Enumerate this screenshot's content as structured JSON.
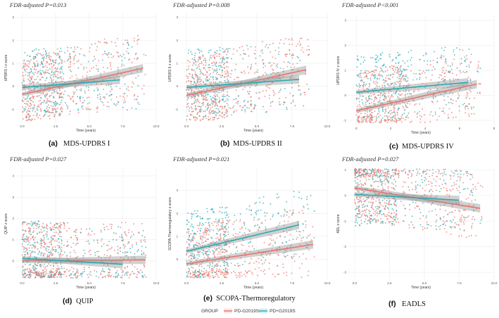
{
  "figure": {
    "legend": {
      "title": "GROUP",
      "entries": [
        {
          "label": "PD-G2019S",
          "color": "#e8736b"
        },
        {
          "label": "PD+G2019S",
          "color": "#2aa9b3"
        }
      ]
    }
  },
  "chart_data": [
    {
      "type": "scatter",
      "id": "a",
      "title": "FDR-adjusted P=0.013",
      "caption_letter": "(a)",
      "caption": "MDS-UPDRS  I",
      "xlabel": "Time (years)",
      "ylabel": "UPDRS I z score",
      "xlim": [
        -0.5,
        10
      ],
      "ylim": [
        -1.6,
        3.2
      ],
      "xticks": [
        "0.0",
        "2.5",
        "5.0",
        "7.5",
        "10.0"
      ],
      "xtick_values": [
        0,
        2.5,
        5,
        7.5,
        10
      ],
      "yticks": [
        "-1",
        "0",
        "1",
        "2",
        "3"
      ],
      "ytick_values": [
        -1,
        0,
        1,
        2,
        3
      ],
      "series": [
        {
          "name": "PD-G2019S",
          "fit": {
            "x": [
              0,
              9
            ],
            "y": [
              -0.35,
              0.78
            ]
          }
        },
        {
          "name": "PD+G2019S",
          "fit": {
            "x": [
              0,
              7.3
            ],
            "y": [
              -0.05,
              0.28
            ]
          }
        }
      ]
    },
    {
      "type": "scatter",
      "id": "b",
      "title": "FDR-adjusted P=0.008",
      "caption_letter": "(b)",
      "caption": "MDS-UPDRS  II",
      "xlabel": "Time (years)",
      "ylabel": "UPDRS II z score",
      "xlim": [
        -0.5,
        10
      ],
      "ylim": [
        -1.6,
        3.2
      ],
      "xticks": [
        "0.0",
        "2.5",
        "5.0",
        "7.5",
        "10.0"
      ],
      "xtick_values": [
        0,
        2.5,
        5,
        7.5,
        10
      ],
      "yticks": [
        "-1",
        "0",
        "1",
        "2",
        "3"
      ],
      "ytick_values": [
        -1,
        0,
        1,
        2,
        3
      ],
      "series": [
        {
          "name": "PD-G2019S",
          "fit": {
            "x": [
              0,
              8.5
            ],
            "y": [
              -0.4,
              0.72
            ]
          }
        },
        {
          "name": "PD+G2019S",
          "fit": {
            "x": [
              0,
              8.0
            ],
            "y": [
              -0.05,
              0.3
            ]
          }
        }
      ]
    },
    {
      "type": "scatter",
      "id": "c",
      "title": "FDR-adjusted P<0.001",
      "caption_letter": "(c)",
      "caption": "MDS-UPDRS  IV",
      "xlabel": "Time (years)",
      "ylabel": "UPDRS IV z score",
      "xlim": [
        -0.5,
        8
      ],
      "ylim": [
        -1.2,
        3.2
      ],
      "xticks": [
        "0",
        "2",
        "4",
        "6",
        "8"
      ],
      "xtick_values": [
        0,
        2,
        4,
        6,
        8
      ],
      "yticks": [
        "-1",
        "0",
        "1",
        "2",
        "3"
      ],
      "ytick_values": [
        -1,
        0,
        1,
        2,
        3
      ],
      "series": [
        {
          "name": "PD-G2019S",
          "fit": {
            "x": [
              0,
              7.0
            ],
            "y": [
              -0.62,
              0.45
            ]
          }
        },
        {
          "name": "PD+G2019S",
          "fit": {
            "x": [
              0,
              6.5
            ],
            "y": [
              0.12,
              0.52
            ]
          }
        }
      ]
    },
    {
      "type": "scatter",
      "id": "d",
      "title": "FDR-adjusted P=0.027",
      "caption_letter": "(d)",
      "caption": "QUIP",
      "xlabel": "Time (years)",
      "ylabel": "QUIP z score",
      "xlim": [
        -0.5,
        10
      ],
      "ylim": [
        -0.9,
        4.4
      ],
      "xticks": [
        "0.0",
        "2.5",
        "5.0",
        "7.5",
        "10.0"
      ],
      "xtick_values": [
        0,
        2.5,
        5,
        7.5,
        10
      ],
      "yticks": [
        "0",
        "1",
        "2",
        "3",
        "4"
      ],
      "ytick_values": [
        0,
        1,
        2,
        3,
        4
      ],
      "series": [
        {
          "name": "PD-G2019S",
          "fit": {
            "x": [
              0,
              9.2
            ],
            "y": [
              0.0,
              0.05
            ]
          }
        },
        {
          "name": "PD+G2019S",
          "fit": {
            "x": [
              0,
              7.5
            ],
            "y": [
              0.12,
              -0.16
            ]
          }
        }
      ]
    },
    {
      "type": "scatter",
      "id": "e",
      "title": "FDR-adjusted P=0.021",
      "caption_letter": "(e)",
      "caption": "SCOPA-Thermoregulatory",
      "xlabel": "Time (years)",
      "ylabel": "SCOPA-Thermoregulatory z score",
      "xlim": [
        -0.5,
        10
      ],
      "ylim": [
        -0.9,
        4.0
      ],
      "xticks": [
        "0.0",
        "2.5",
        "5.0",
        "7.5",
        "10.0"
      ],
      "xtick_values": [
        0,
        2.5,
        5,
        7.5,
        10
      ],
      "yticks": [
        "0",
        "1",
        "2",
        "3"
      ],
      "ytick_values": [
        0,
        1,
        2,
        3
      ],
      "series": [
        {
          "name": "PD-G2019S",
          "fit": {
            "x": [
              0,
              9.0
            ],
            "y": [
              -0.2,
              0.65
            ]
          }
        },
        {
          "name": "PD+G2019S",
          "fit": {
            "x": [
              0,
              8.0
            ],
            "y": [
              0.35,
              1.5
            ]
          }
        }
      ]
    },
    {
      "type": "scatter",
      "id": "f",
      "title": "FDR-adjusted P=0.027",
      "caption_letter": "(f)",
      "caption": "EADLS",
      "xlabel": "Time (years)",
      "ylabel": "ADL z score",
      "xlim": [
        -0.5,
        10
      ],
      "ylim": [
        -3.3,
        1.1
      ],
      "xticks": [
        "0.0",
        "2.5",
        "5.0",
        "7.5",
        "10.0"
      ],
      "xtick_values": [
        0,
        2.5,
        5,
        7.5,
        10
      ],
      "yticks": [
        "-3",
        "-2",
        "-1",
        "0",
        "1"
      ],
      "ytick_values": [
        -3,
        -2,
        -1,
        0,
        1
      ],
      "series": [
        {
          "name": "PD-G2019S",
          "fit": {
            "x": [
              0,
              9.0
            ],
            "y": [
              0.3,
              -0.5
            ]
          }
        },
        {
          "name": "PD+G2019S",
          "fit": {
            "x": [
              0,
              7.5
            ],
            "y": [
              0.05,
              -0.18
            ]
          }
        }
      ]
    }
  ]
}
